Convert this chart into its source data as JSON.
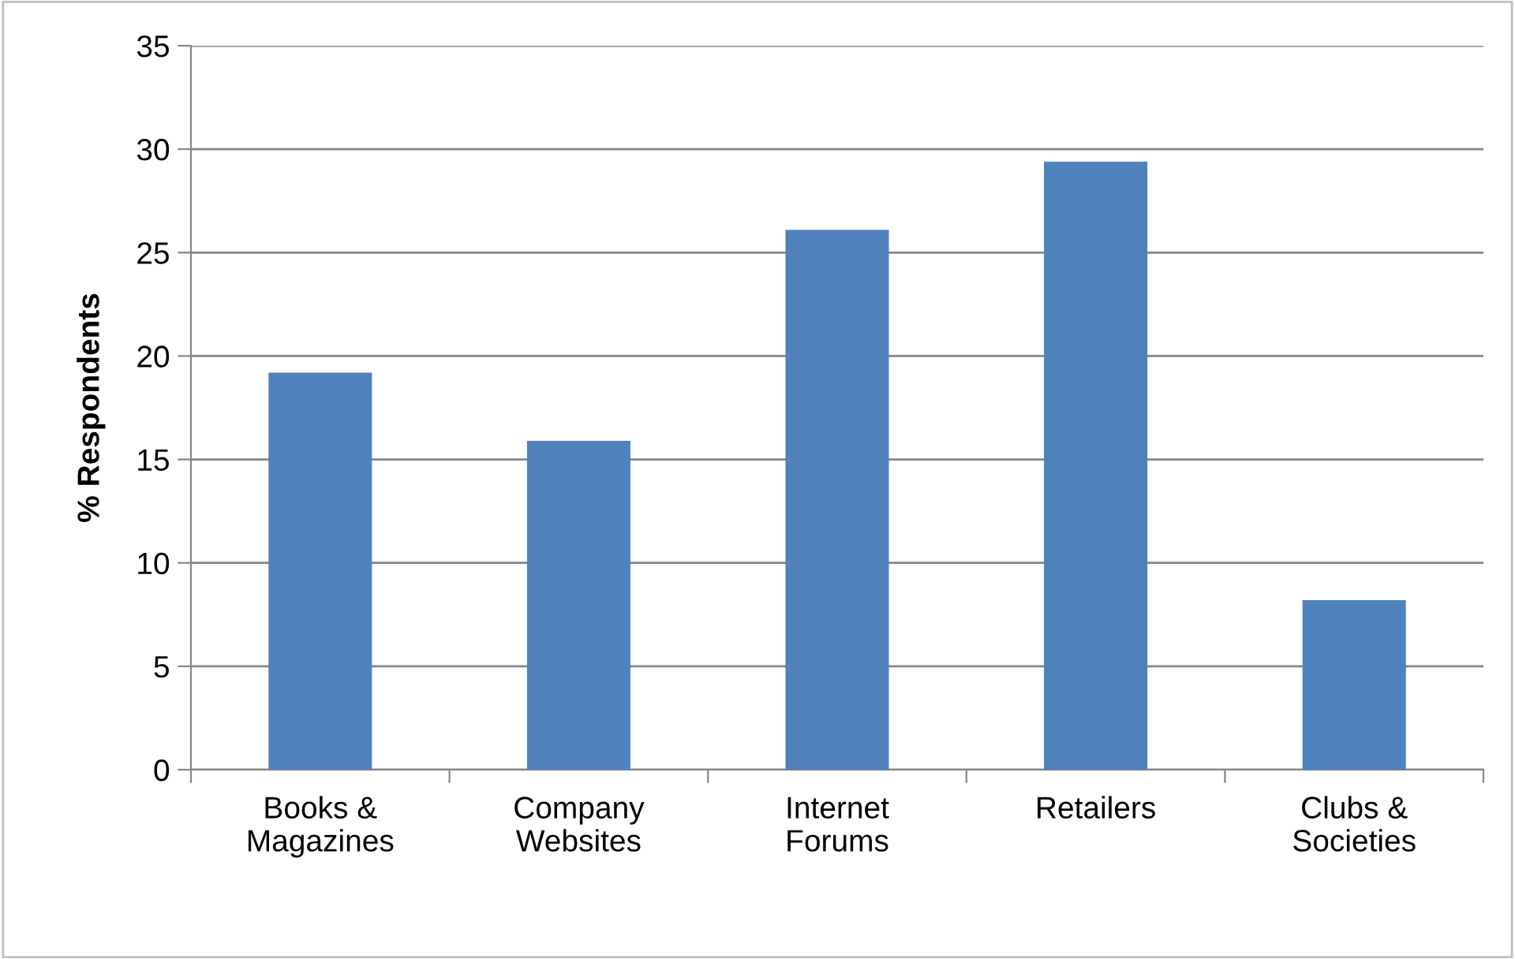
{
  "chart_data": {
    "type": "bar",
    "ylabel": "% Respondents",
    "categories": [
      "Books &\nMagazines",
      "Company\nWebsites",
      "Internet\nForums",
      "Retailers",
      "Clubs &\nSocieties"
    ],
    "values": [
      19.2,
      15.9,
      26.1,
      29.4,
      8.2
    ],
    "color": "#4f81bd",
    "ylim": [
      0,
      35
    ],
    "yticks": [
      0,
      5,
      10,
      15,
      20,
      25,
      30,
      35
    ],
    "grid": "y"
  }
}
